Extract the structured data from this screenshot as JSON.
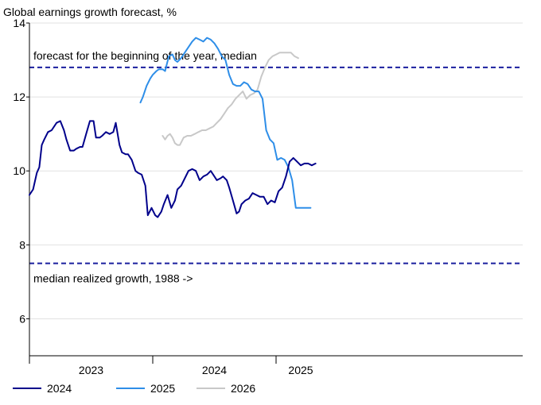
{
  "chart_data": {
    "type": "line",
    "title": "Global earnings growth forecast, %",
    "xlabel": "",
    "ylabel": "",
    "ylim": [
      5,
      14
    ],
    "xlim": [
      2022.0,
      2026.0
    ],
    "y_ticks": [
      6,
      8,
      10,
      12,
      14
    ],
    "x_period_labels": [
      {
        "label": "2023",
        "x": 2022.5
      },
      {
        "label": "2024",
        "x": 2023.5
      },
      {
        "label": "2025",
        "x": 2024.2
      }
    ],
    "x_boundaries": [
      2022.0,
      2023.0,
      2024.0
    ],
    "grid": true,
    "legend_position": "bottom-left",
    "reference_lines": [
      {
        "label": "forecast for the beginning of the year, median",
        "y": 12.8,
        "color": "#1a1f9e",
        "style": "dashed"
      },
      {
        "label": "median realized growth, 1988 ->",
        "y": 7.5,
        "color": "#1a1f9e",
        "style": "dashed"
      }
    ],
    "series": [
      {
        "name": "2024",
        "color": "#00008b",
        "x": [
          2022.0,
          2022.03,
          2022.06,
          2022.08,
          2022.1,
          2022.12,
          2022.15,
          2022.18,
          2022.22,
          2022.25,
          2022.28,
          2022.3,
          2022.33,
          2022.36,
          2022.38,
          2022.41,
          2022.43,
          2022.46,
          2022.49,
          2022.52,
          2022.54,
          2022.57,
          2022.59,
          2022.62,
          2022.65,
          2022.68,
          2022.7,
          2022.73,
          2022.75,
          2022.78,
          2022.8,
          2022.83,
          2022.86,
          2022.88,
          2022.91,
          2022.94,
          2022.96,
          2022.99,
          2023.02,
          2023.04,
          2023.07,
          2023.09,
          2023.12,
          2023.15,
          2023.18,
          2023.2,
          2023.23,
          2023.26,
          2023.29,
          2023.32,
          2023.35,
          2023.38,
          2023.41,
          2023.44,
          2023.47,
          2023.5,
          2023.52,
          2023.55,
          2023.57,
          2023.6,
          2023.62,
          2023.65,
          2023.68,
          2023.7,
          2023.72,
          2023.75,
          2023.78,
          2023.81,
          2023.84,
          2023.87,
          2023.9,
          2023.93,
          2023.96,
          2023.99,
          2024.02,
          2024.05,
          2024.08,
          2024.11,
          2024.14,
          2024.17,
          2024.2,
          2024.23,
          2024.26,
          2024.29,
          2024.32
        ],
        "values": [
          9.35,
          9.5,
          9.95,
          10.1,
          10.7,
          10.85,
          11.05,
          11.1,
          11.3,
          11.35,
          11.1,
          10.85,
          10.55,
          10.55,
          10.6,
          10.65,
          10.65,
          11.0,
          11.35,
          11.35,
          10.9,
          10.9,
          10.95,
          11.05,
          11.0,
          11.05,
          11.3,
          10.7,
          10.5,
          10.45,
          10.45,
          10.3,
          10.0,
          9.95,
          9.9,
          9.6,
          8.8,
          9.0,
          8.8,
          8.75,
          8.9,
          9.1,
          9.35,
          9.0,
          9.2,
          9.5,
          9.6,
          9.8,
          10.0,
          10.05,
          10.0,
          9.75,
          9.85,
          9.9,
          10.0,
          9.85,
          9.75,
          9.8,
          9.85,
          9.75,
          9.55,
          9.2,
          8.85,
          8.9,
          9.1,
          9.2,
          9.25,
          9.4,
          9.35,
          9.3,
          9.3,
          9.1,
          9.2,
          9.15,
          9.45,
          9.55,
          9.85,
          10.25,
          10.35,
          10.25,
          10.15,
          10.2,
          10.2,
          10.15,
          10.2
        ]
      },
      {
        "name": "2025",
        "color": "#2e8ee8",
        "x": [
          2022.9,
          2022.92,
          2022.95,
          2022.98,
          2023.0,
          2023.03,
          2023.05,
          2023.08,
          2023.1,
          2023.13,
          2023.16,
          2023.18,
          2023.2,
          2023.23,
          2023.26,
          2023.29,
          2023.32,
          2023.35,
          2023.38,
          2023.41,
          2023.44,
          2023.47,
          2023.5,
          2023.53,
          2023.56,
          2023.59,
          2023.62,
          2023.65,
          2023.68,
          2023.71,
          2023.74,
          2023.77,
          2023.8,
          2023.83,
          2023.86,
          2023.89,
          2023.92,
          2023.95,
          2023.98,
          2024.01,
          2024.04,
          2024.07,
          2024.1,
          2024.13,
          2024.16,
          2024.19,
          2024.22,
          2024.25,
          2024.28
        ],
        "values": [
          11.85,
          12.0,
          12.3,
          12.5,
          12.6,
          12.7,
          12.75,
          12.75,
          12.7,
          13.1,
          13.15,
          13.0,
          12.95,
          13.05,
          13.2,
          13.35,
          13.5,
          13.6,
          13.55,
          13.5,
          13.6,
          13.55,
          13.45,
          13.3,
          13.1,
          13.0,
          12.6,
          12.35,
          12.3,
          12.3,
          12.4,
          12.35,
          12.2,
          12.15,
          12.15,
          11.95,
          11.1,
          10.85,
          10.75,
          10.3,
          10.35,
          10.3,
          10.1,
          9.75,
          9.0,
          9.0,
          9.0,
          9.0,
          9.0
        ]
      },
      {
        "name": "2026",
        "color": "#c8c8c8",
        "x": [
          2023.08,
          2023.1,
          2023.12,
          2023.14,
          2023.16,
          2023.18,
          2023.2,
          2023.22,
          2023.25,
          2023.28,
          2023.31,
          2023.34,
          2023.37,
          2023.4,
          2023.43,
          2023.46,
          2023.49,
          2023.52,
          2023.55,
          2023.58,
          2023.61,
          2023.64,
          2023.67,
          2023.7,
          2023.73,
          2023.76,
          2023.79,
          2023.82,
          2023.85,
          2023.88,
          2023.91,
          2023.94,
          2023.97,
          2024.0,
          2024.03,
          2024.06,
          2024.09,
          2024.12,
          2024.15,
          2024.18
        ],
        "values": [
          10.95,
          10.85,
          10.95,
          11.0,
          10.9,
          10.75,
          10.7,
          10.7,
          10.9,
          10.95,
          10.95,
          11.0,
          11.05,
          11.1,
          11.1,
          11.15,
          11.2,
          11.3,
          11.4,
          11.55,
          11.7,
          11.8,
          11.95,
          12.05,
          12.15,
          11.95,
          12.05,
          12.1,
          12.2,
          12.55,
          12.8,
          13.0,
          13.1,
          13.15,
          13.2,
          13.2,
          13.2,
          13.2,
          13.1,
          13.05
        ]
      }
    ]
  }
}
